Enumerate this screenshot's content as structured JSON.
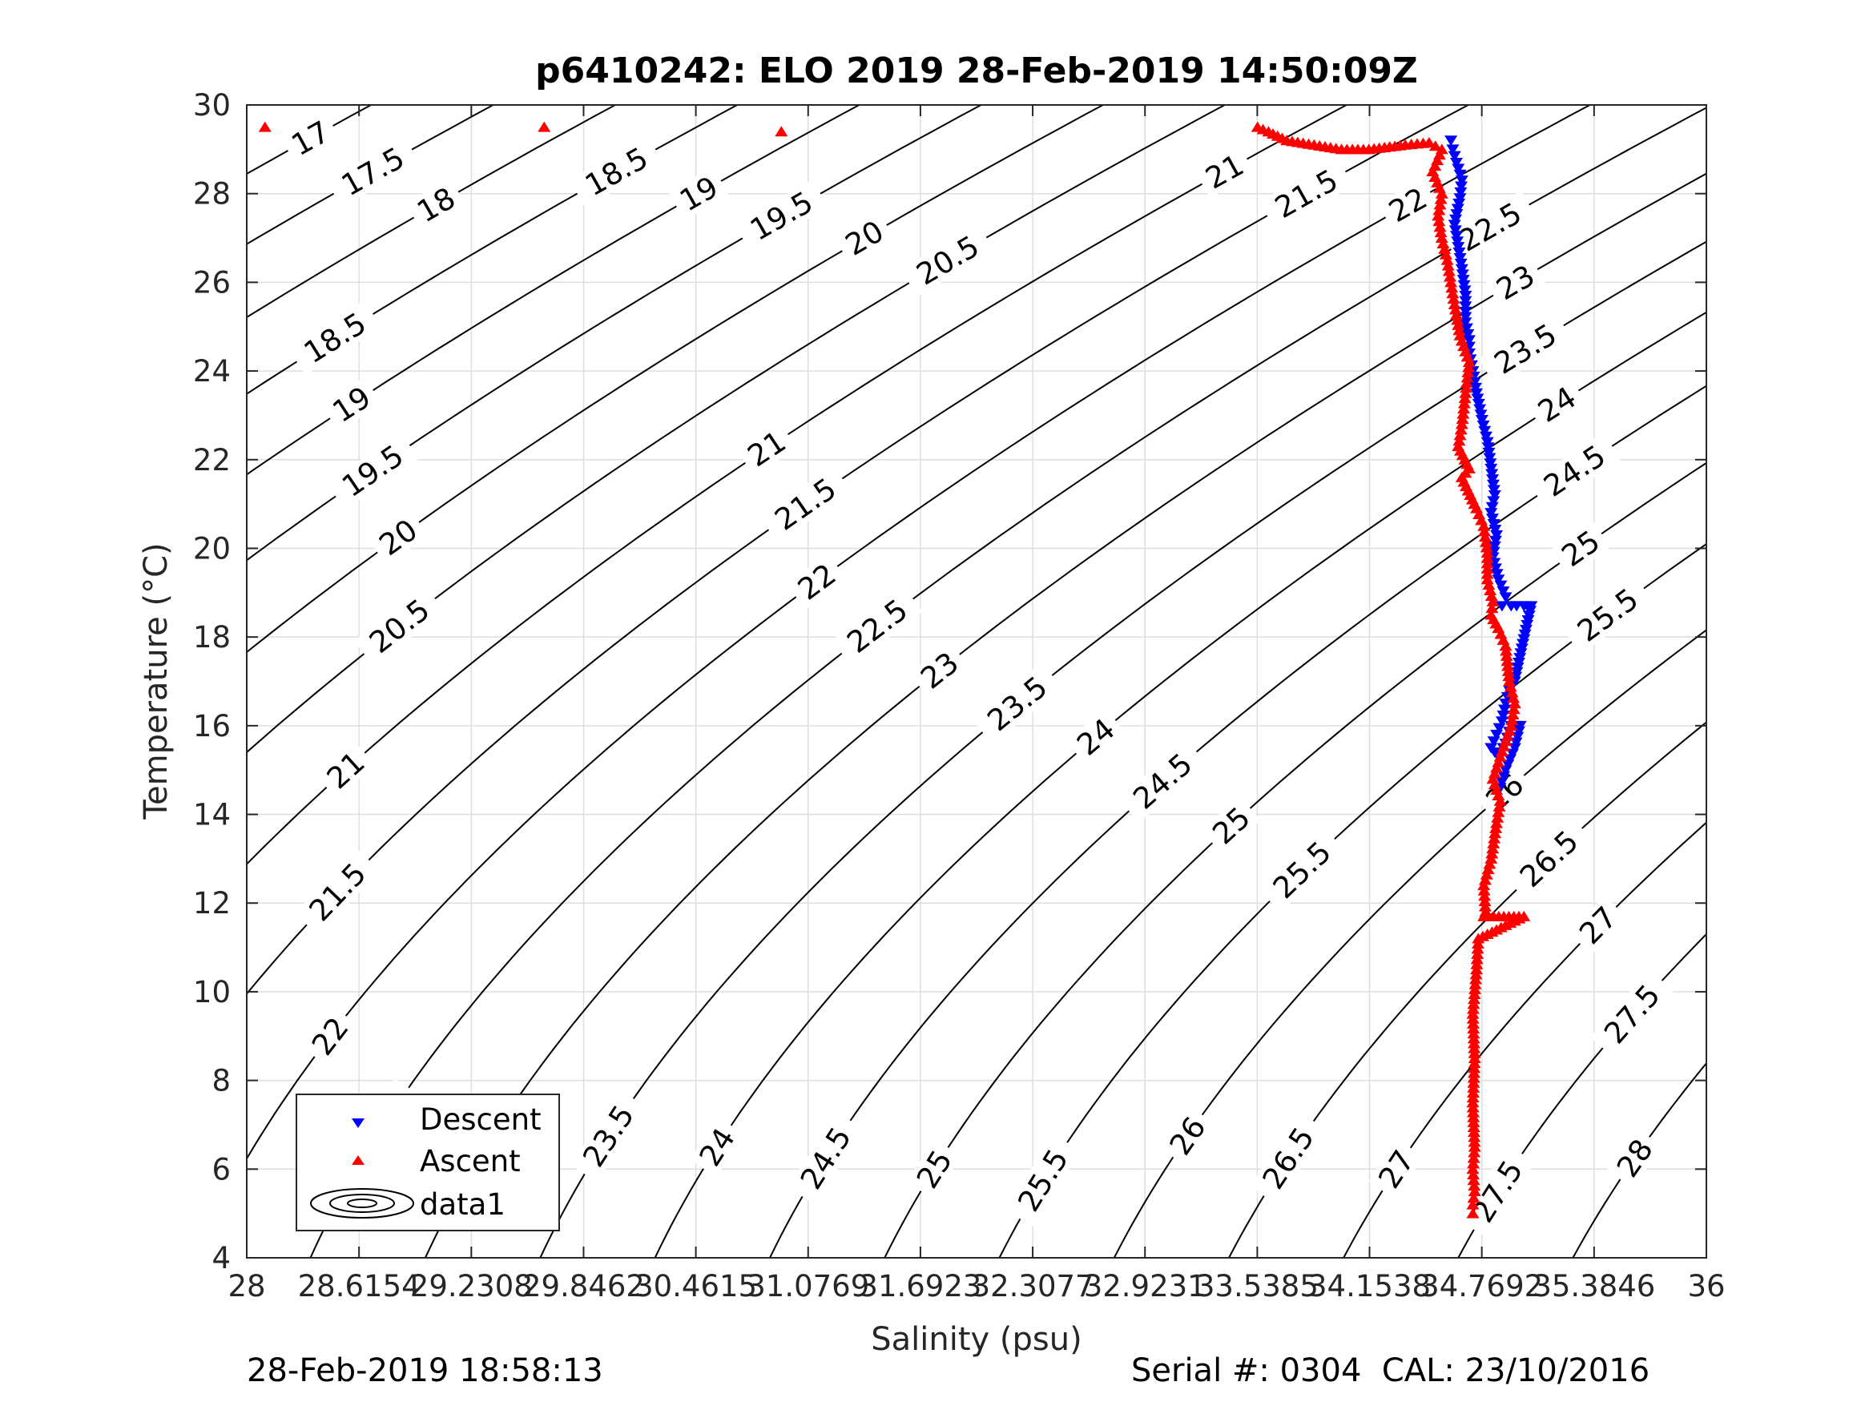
{
  "chart_data": {
    "type": "scatter",
    "title": "p6410242: ELO 2019 28-Feb-2019 14:50:09Z",
    "xlabel": "Salinity (psu)",
    "ylabel": "Temperature (°C)",
    "xlim": [
      28,
      36
    ],
    "ylim": [
      4,
      30
    ],
    "xtick_values": [
      28,
      28.6154,
      29.2308,
      29.8462,
      30.4615,
      31.0769,
      31.6923,
      32.3077,
      32.9231,
      33.5385,
      34.1538,
      34.7692,
      35.3846,
      36
    ],
    "xtick_labels": [
      "28",
      "28.6154",
      "29.2308",
      "29.8462",
      "30.4615",
      "31.0769",
      "31.6923",
      "32.3077",
      "32.9231",
      "33.5385",
      "34.1538",
      "34.7692",
      "35.3846",
      "36"
    ],
    "ytick_values": [
      4,
      6,
      8,
      10,
      12,
      14,
      16,
      18,
      20,
      22,
      24,
      26,
      28,
      30
    ],
    "ytick_labels": [
      "4",
      "6",
      "8",
      "10",
      "12",
      "14",
      "16",
      "18",
      "20",
      "22",
      "24",
      "26",
      "28",
      "30"
    ],
    "grid": true,
    "legend_position": "bottom-left",
    "legend": [
      "Descent",
      "Ascent",
      "data1"
    ],
    "contours": {
      "name": "data1",
      "levels": [
        17,
        17.5,
        18,
        18.5,
        19,
        19.5,
        20,
        20.5,
        21,
        21.5,
        22,
        22.5,
        23,
        23.5,
        24,
        24.5,
        25,
        25.5,
        26,
        26.5,
        27,
        27.5,
        28
      ],
      "color": "#000000"
    },
    "series": [
      {
        "name": "Descent",
        "marker": "triangle-down",
        "color": "#0000ff",
        "x": [
          34.6,
          34.61,
          34.63,
          34.66,
          34.65,
          34.62,
          34.64,
          34.66,
          34.68,
          34.68,
          34.7,
          34.7,
          34.72,
          34.74,
          34.77,
          34.8,
          34.82,
          34.84,
          34.82,
          34.85,
          34.83,
          34.86,
          34.9,
          34.88,
          34.93,
          34.96,
          35.0,
          35.04,
          34.95,
          34.92,
          34.9,
          34.88,
          34.85,
          34.82,
          34.86,
          34.9,
          34.93,
          34.95,
          34.98,
          34.95,
          34.9,
          34.87
        ],
        "y": [
          29.2,
          29.0,
          28.7,
          28.3,
          27.9,
          27.3,
          26.8,
          26.3,
          25.7,
          25.1,
          24.7,
          24.4,
          24.0,
          23.5,
          22.9,
          22.4,
          21.8,
          21.2,
          20.8,
          20.3,
          19.8,
          19.3,
          18.9,
          18.7,
          18.7,
          18.7,
          18.7,
          18.7,
          17.0,
          16.8,
          16.5,
          16.1,
          15.8,
          15.5,
          15.3,
          15.6,
          16.0,
          16.0,
          16.0,
          15.5,
          15.0,
          14.6
        ]
      },
      {
        "name": "Ascent",
        "marker": "triangle-up",
        "color": "#ff0000",
        "x": [
          28.1,
          29.63,
          30.93,
          33.54,
          33.6,
          33.7,
          33.85,
          34.0,
          34.15,
          34.35,
          34.48,
          34.55,
          34.5,
          34.55,
          34.53,
          34.55,
          34.58,
          34.6,
          34.62,
          34.65,
          34.7,
          34.68,
          34.66,
          34.64,
          34.7,
          34.66,
          34.74,
          34.78,
          34.8,
          34.8,
          34.83,
          34.82,
          34.86,
          34.9,
          34.92,
          34.95,
          34.93,
          34.87,
          34.83,
          34.87,
          34.85,
          34.82,
          34.78,
          34.79,
          34.78,
          35.0,
          34.75,
          34.74,
          34.72,
          34.73,
          34.72,
          34.73,
          34.72,
          34.73,
          34.72,
          34.72
        ],
        "y": [
          29.5,
          29.5,
          29.4,
          29.5,
          29.4,
          29.2,
          29.1,
          29.0,
          29.0,
          29.1,
          29.15,
          29.0,
          28.5,
          28.0,
          27.5,
          27.0,
          26.5,
          26.0,
          25.5,
          24.8,
          24.2,
          23.5,
          22.8,
          22.3,
          21.8,
          21.6,
          20.9,
          20.5,
          19.9,
          19.3,
          18.8,
          18.5,
          18.2,
          17.8,
          17.0,
          16.5,
          16.0,
          15.3,
          14.8,
          14.3,
          13.8,
          13.0,
          12.4,
          11.8,
          11.7,
          11.7,
          11.2,
          10.5,
          9.5,
          8.5,
          7.5,
          6.5,
          6.0,
          5.5,
          5.2,
          5.0
        ]
      }
    ]
  },
  "footer": {
    "left": "28-Feb-2019 18:58:13",
    "right": "Serial #: 0304  CAL: 23/10/2016"
  }
}
